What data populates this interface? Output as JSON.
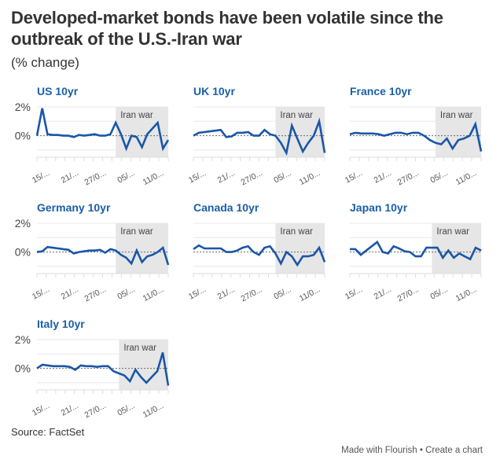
{
  "header": {
    "title": "Developed-market bonds have been volatile since the outbreak of the U.S.-Iran war",
    "subtitle": "(% change)"
  },
  "footer": {
    "source": "Source: FactSet",
    "made_with": "Made with Flourish",
    "separator": "•",
    "create_chart": "Create a chart"
  },
  "colors": {
    "line": "#1a56a8",
    "title_blue": "#1a5fa8",
    "shade": "#e6e6e6",
    "grid": "#e8e8e8",
    "zero_line": "#777777"
  },
  "chart_data": [
    {
      "type": "line",
      "title": "US 10yr",
      "ylim": [
        -1.5,
        2
      ],
      "yticks": [
        "2%",
        "0%"
      ],
      "yticks_values": [
        2,
        0
      ],
      "xtick_labels": [
        "15/...",
        "21/...",
        "27/0...",
        "05/...",
        "11/0..."
      ],
      "annotation": {
        "label": "Iran war",
        "start_index": 15
      },
      "values": [
        0,
        1.9,
        0.1,
        0.05,
        0.05,
        0,
        0,
        -0.1,
        0.05,
        0,
        0.05,
        0.1,
        0,
        0,
        0.1,
        0.9,
        0.1,
        -0.9,
        0,
        -0.1,
        -0.8,
        0.1,
        0.5,
        0.9,
        -0.9,
        -0.3
      ]
    },
    {
      "type": "line",
      "title": "UK 10yr",
      "ylim": [
        -1.5,
        2
      ],
      "yticks": [
        "2%",
        "0%"
      ],
      "yticks_values": [
        2,
        0
      ],
      "xtick_labels": [
        "15/...",
        "21/...",
        "27/0...",
        "05/...",
        "11/0..."
      ],
      "annotation": {
        "label": "Iran war",
        "start_index": 15
      },
      "values": [
        0,
        0.2,
        0.25,
        0.3,
        0.35,
        0.4,
        -0.1,
        -0.05,
        0.2,
        0.2,
        0.25,
        0,
        0,
        0.4,
        0.1,
        0,
        -0.5,
        -1.2,
        0.7,
        -0.2,
        -1.1,
        -0.5,
        0,
        1.0,
        -1.2
      ]
    },
    {
      "type": "line",
      "title": "France 10yr",
      "ylim": [
        -1.5,
        2
      ],
      "yticks": [
        "2%",
        "0%"
      ],
      "yticks_values": [
        2,
        0
      ],
      "xtick_labels": [
        "15/...",
        "21/...",
        "27/0...",
        "05/...",
        "11/0..."
      ],
      "annotation": {
        "label": "Iran war",
        "start_index": 15
      },
      "values": [
        0.1,
        0.2,
        0.15,
        0.15,
        0.15,
        0.1,
        0,
        0.1,
        0.2,
        0.2,
        0.1,
        0.2,
        0.2,
        0,
        -0.3,
        -0.5,
        -0.6,
        -0.2,
        -0.9,
        -0.3,
        -0.2,
        0,
        0.8,
        -1.1
      ]
    },
    {
      "type": "line",
      "title": "Germany 10yr",
      "ylim": [
        -1.5,
        2
      ],
      "yticks": [
        "2%",
        "0%"
      ],
      "yticks_values": [
        2,
        0
      ],
      "xtick_labels": [
        "15/...",
        "21/...",
        "27/0...",
        "05/...",
        "11/0..."
      ],
      "annotation": {
        "label": "Iran war",
        "start_index": 15
      },
      "values": [
        0,
        0.05,
        0.35,
        0.3,
        0.25,
        0.2,
        0.15,
        -0.1,
        0,
        0.05,
        0.1,
        0.1,
        0.15,
        -0.05,
        0.2,
        0.1,
        -0.2,
        -0.4,
        -0.8,
        0.1,
        -0.7,
        -0.3,
        -0.2,
        0,
        0.3,
        -0.9
      ]
    },
    {
      "type": "line",
      "title": "Canada 10yr",
      "ylim": [
        -1.5,
        2
      ],
      "yticks": [
        "2%",
        "0%"
      ],
      "yticks_values": [
        2,
        0
      ],
      "xtick_labels": [
        "15/...",
        "21/...",
        "27/0...",
        "05/...",
        "11/0..."
      ],
      "annotation": {
        "label": "Iran war",
        "start_index": 15
      },
      "values": [
        0.2,
        0.45,
        0.25,
        0.25,
        0.25,
        0.25,
        0,
        0,
        0.1,
        0.3,
        0.4,
        0,
        -0.2,
        0.3,
        0.4,
        -0.1,
        -0.8,
        0,
        -0.3,
        -0.9,
        -0.3,
        -0.3,
        -0.2,
        0.3,
        -0.7
      ]
    },
    {
      "type": "line",
      "title": "Japan 10yr",
      "ylim": [
        -1.5,
        2
      ],
      "yticks": [
        "2%",
        "0%"
      ],
      "yticks_values": [
        2,
        0
      ],
      "xtick_labels": [
        "15/...",
        "21/...",
        "27/0...",
        "05/...",
        "11/0..."
      ],
      "annotation": {
        "label": "Iran war",
        "start_index": 15
      },
      "values": [
        0.2,
        0.2,
        -0.2,
        0.1,
        0.4,
        0.7,
        0,
        -0.1,
        0.4,
        0.25,
        0.05,
        0,
        -0.3,
        -0.3,
        0.3,
        0.3,
        0.3,
        -0.4,
        0.1,
        -0.4,
        -0.1,
        -0.3,
        -0.5,
        0.3,
        0.1
      ]
    },
    {
      "type": "line",
      "title": "Italy 10yr",
      "ylim": [
        -1.5,
        2
      ],
      "yticks": [
        "2%",
        "0%"
      ],
      "yticks_values": [
        2,
        0
      ],
      "xtick_labels": [
        "15/...",
        "21/...",
        "27/0...",
        "05/...",
        "11/0..."
      ],
      "annotation": {
        "label": "Iran war",
        "start_index": 15
      },
      "values": [
        0,
        0.25,
        0.2,
        0.15,
        0.15,
        0.15,
        0.1,
        -0.1,
        0.2,
        0.15,
        0.15,
        0.1,
        0.15,
        0.15,
        -0.2,
        -0.35,
        -0.5,
        -0.9,
        -0.1,
        -0.6,
        -1.0,
        -0.6,
        -0.2,
        1.1,
        -1.2
      ]
    }
  ]
}
